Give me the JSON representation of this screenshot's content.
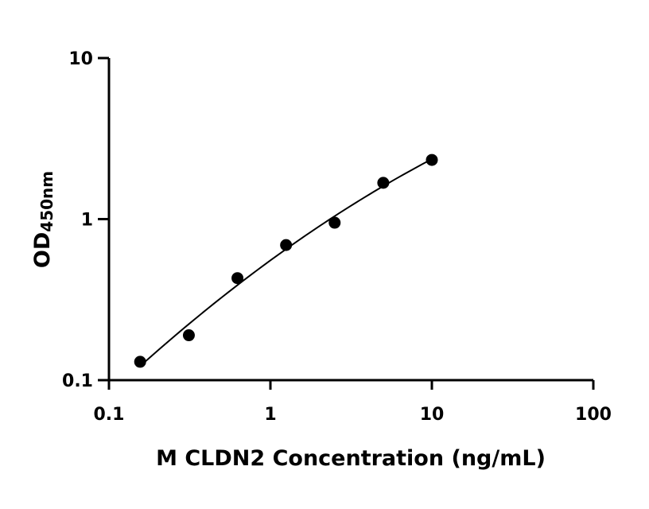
{
  "chart_data": {
    "type": "scatter",
    "title": "",
    "xlabel": "M CLDN2 Concentration (ng/mL)",
    "ylabel_main": "OD",
    "ylabel_sub": "450nm",
    "x_scale": "log",
    "y_scale": "log",
    "xlim": [
      0.1,
      100
    ],
    "ylim": [
      0.1,
      10
    ],
    "x_ticks": [
      0.1,
      1,
      10,
      100
    ],
    "x_tick_labels": [
      "0.1",
      "1",
      "10",
      "100"
    ],
    "y_ticks": [
      0.1,
      1,
      10
    ],
    "y_tick_labels": [
      "0.1",
      "1",
      "10"
    ],
    "grid": false,
    "legend": "none",
    "series": [
      {
        "x": [
          0.156,
          0.3125,
          0.625,
          1.25,
          2.5,
          5,
          10
        ],
        "y": [
          0.13,
          0.19,
          0.43,
          0.69,
          0.95,
          1.68,
          2.33
        ]
      }
    ],
    "fit_curve": true,
    "colors": {
      "points": "#000000",
      "line": "#000000",
      "axes": "#000000"
    }
  }
}
